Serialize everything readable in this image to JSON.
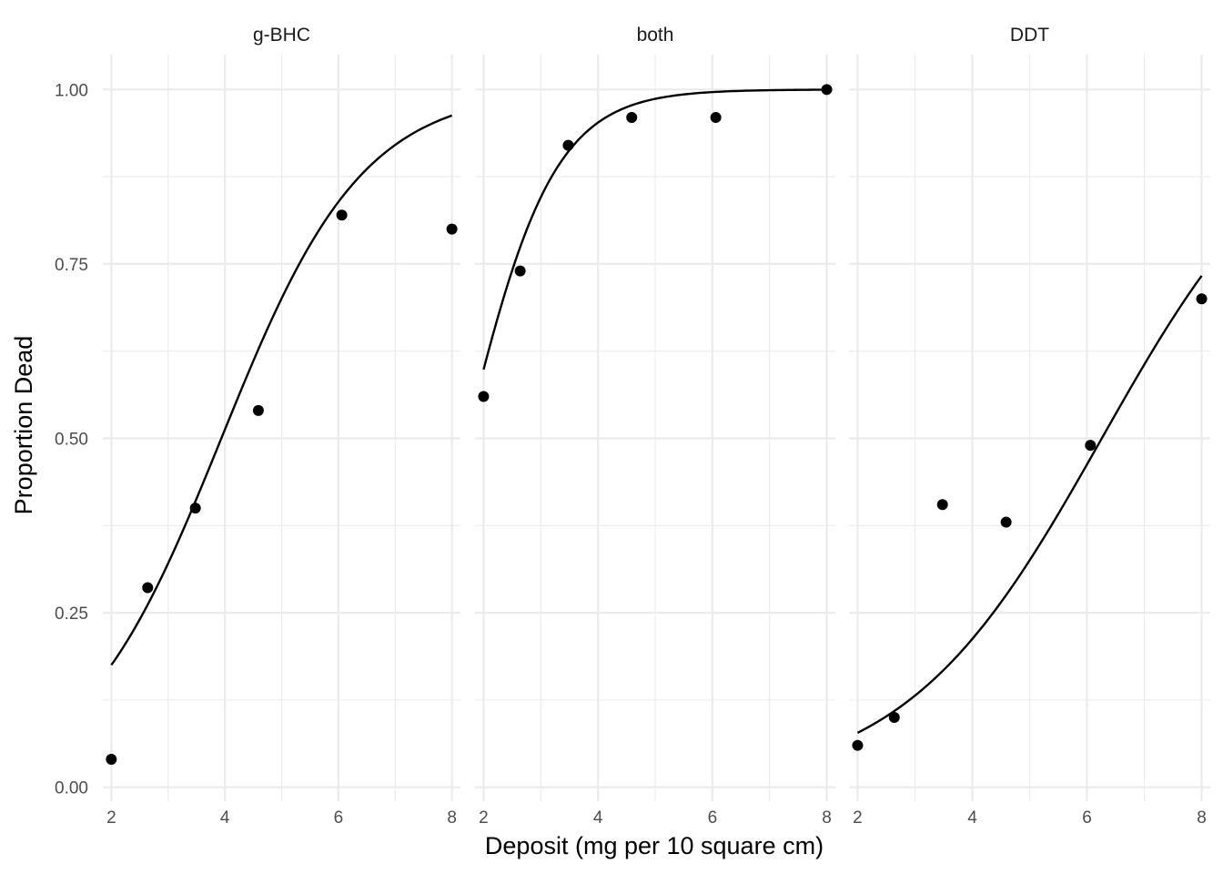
{
  "chart_data": {
    "type": "scatter",
    "xlabel": "Deposit (mg per 10 square cm)",
    "ylabel": "Proportion Dead",
    "xlim": [
      1.85,
      8.15
    ],
    "ylim": [
      -0.02,
      1.05
    ],
    "x_ticks": [
      2,
      4,
      6,
      8
    ],
    "x_minor_ticks": [
      3,
      5,
      7
    ],
    "y_ticks": [
      0.0,
      0.25,
      0.5,
      0.75,
      1.0
    ],
    "y_tick_labels": [
      "0.00",
      "0.25",
      "0.50",
      "0.75",
      "1.00"
    ],
    "y_minor_ticks": [
      0.125,
      0.375,
      0.625,
      0.875
    ],
    "grid": true,
    "point_color": "#000000",
    "curve_color": "#000000",
    "facets": [
      {
        "label": "g-BHC",
        "points": [
          {
            "x": 2.0,
            "y": 0.04
          },
          {
            "x": 2.64,
            "y": 0.286
          },
          {
            "x": 3.48,
            "y": 0.4
          },
          {
            "x": 4.59,
            "y": 0.54
          },
          {
            "x": 6.06,
            "y": 0.82
          },
          {
            "x": 8.0,
            "y": 0.8
          }
        ],
        "fit": {
          "intercept": -3.15,
          "slope": 0.8
        }
      },
      {
        "label": "both",
        "points": [
          {
            "x": 2.0,
            "y": 0.56
          },
          {
            "x": 2.64,
            "y": 0.74
          },
          {
            "x": 3.48,
            "y": 0.92
          },
          {
            "x": 4.59,
            "y": 0.96
          },
          {
            "x": 6.06,
            "y": 0.96
          },
          {
            "x": 8.0,
            "y": 1.0
          }
        ],
        "fit": {
          "intercept": -2.2,
          "slope": 1.3
        }
      },
      {
        "label": "DDT",
        "points": [
          {
            "x": 2.0,
            "y": 0.06
          },
          {
            "x": 2.64,
            "y": 0.1
          },
          {
            "x": 3.48,
            "y": 0.405
          },
          {
            "x": 4.59,
            "y": 0.38
          },
          {
            "x": 6.06,
            "y": 0.49
          },
          {
            "x": 8.0,
            "y": 0.7
          }
        ],
        "fit": {
          "intercept": -3.63,
          "slope": 0.58
        }
      }
    ]
  }
}
